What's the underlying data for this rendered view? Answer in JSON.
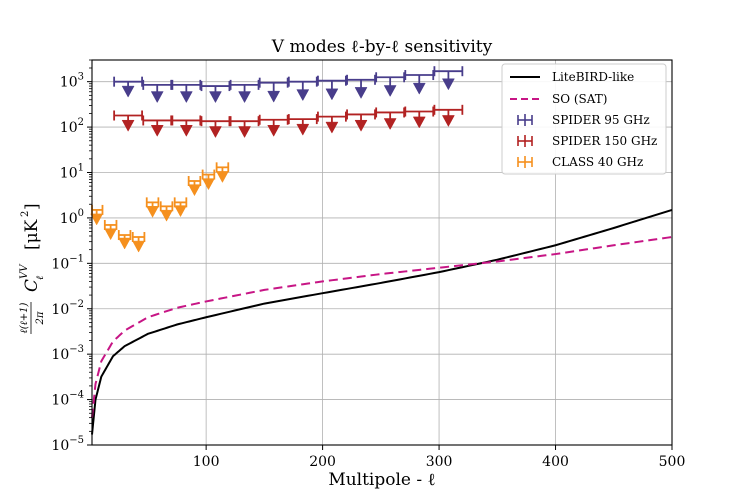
{
  "chart_data": {
    "type": "line",
    "title": "V modes ℓ-by-ℓ sensitivity",
    "xlabel": "Multipole - ℓ",
    "ylabel_parts": {
      "frac_num": "ℓ(ℓ+1)",
      "frac_den": "2π",
      "symbol": "C",
      "sup": "VV",
      "sub": "ℓ",
      "unit": "[μK",
      "unit_sup": "2",
      "unit_close": "]"
    },
    "xlim": [
      2,
      500
    ],
    "ylim": [
      1e-05,
      3000
    ],
    "yscale": "log",
    "grid": true,
    "x_ticks": [
      100,
      200,
      300,
      400,
      500
    ],
    "x_tick_labels": [
      "100",
      "200",
      "300",
      "400",
      "500"
    ],
    "y_ticks": [
      1e-05,
      0.0001,
      0.001,
      0.01,
      0.1,
      1,
      10,
      100,
      1000
    ],
    "y_tick_labels": [
      {
        "base": "10",
        "exp": "−5"
      },
      {
        "base": "10",
        "exp": "−4"
      },
      {
        "base": "10",
        "exp": "−3"
      },
      {
        "base": "10",
        "exp": "−2"
      },
      {
        "base": "10",
        "exp": "−1"
      },
      {
        "base": "10",
        "exp": "0"
      },
      {
        "base": "10",
        "exp": "1"
      },
      {
        "base": "10",
        "exp": "2"
      },
      {
        "base": "10",
        "exp": "3"
      }
    ],
    "legend_position": "top-right",
    "lines": [
      {
        "name": "LiteBIRD-like",
        "color": "#000000",
        "style": "solid",
        "x": [
          2,
          5,
          10,
          20,
          30,
          50,
          75,
          100,
          150,
          200,
          250,
          300,
          350,
          400,
          450,
          500
        ],
        "y": [
          1.7e-05,
          0.0001,
          0.00032,
          0.0009,
          0.0015,
          0.0028,
          0.0045,
          0.0065,
          0.013,
          0.022,
          0.037,
          0.064,
          0.12,
          0.25,
          0.6,
          1.5
        ]
      },
      {
        "name": "SO (SAT)",
        "color": "#c71585",
        "style": "dashed",
        "x": [
          2,
          5,
          10,
          20,
          30,
          50,
          75,
          100,
          150,
          200,
          250,
          300,
          350,
          400,
          450,
          500
        ],
        "y": [
          4e-05,
          0.00022,
          0.0007,
          0.0019,
          0.0033,
          0.0065,
          0.0105,
          0.0145,
          0.026,
          0.04,
          0.058,
          0.08,
          0.11,
          0.16,
          0.25,
          0.38
        ]
      }
    ],
    "upper_limit_series": [
      {
        "name": "SPIDER 95 GHz",
        "color": "#483d8b",
        "points": [
          {
            "x": 33,
            "xerr": 12,
            "y": 1000,
            "arrow_y": 620
          },
          {
            "x": 58,
            "xerr": 12,
            "y": 850,
            "arrow_y": 470
          },
          {
            "x": 83,
            "xerr": 12,
            "y": 850,
            "arrow_y": 470
          },
          {
            "x": 108,
            "xerr": 12,
            "y": 800,
            "arrow_y": 470
          },
          {
            "x": 133,
            "xerr": 12,
            "y": 850,
            "arrow_y": 470
          },
          {
            "x": 158,
            "xerr": 12,
            "y": 950,
            "arrow_y": 480
          },
          {
            "x": 183,
            "xerr": 12,
            "y": 1000,
            "arrow_y": 520
          },
          {
            "x": 208,
            "xerr": 12,
            "y": 1050,
            "arrow_y": 540
          },
          {
            "x": 233,
            "xerr": 12,
            "y": 1100,
            "arrow_y": 580
          },
          {
            "x": 258,
            "xerr": 12,
            "y": 1250,
            "arrow_y": 640
          },
          {
            "x": 283,
            "xerr": 12,
            "y": 1400,
            "arrow_y": 720
          },
          {
            "x": 308,
            "xerr": 12,
            "y": 1700,
            "arrow_y": 900
          }
        ]
      },
      {
        "name": "SPIDER 150 GHz",
        "color": "#b22222",
        "points": [
          {
            "x": 33,
            "xerr": 12,
            "y": 180,
            "arrow_y": 110
          },
          {
            "x": 58,
            "xerr": 12,
            "y": 140,
            "arrow_y": 85
          },
          {
            "x": 83,
            "xerr": 12,
            "y": 140,
            "arrow_y": 85
          },
          {
            "x": 108,
            "xerr": 12,
            "y": 135,
            "arrow_y": 80
          },
          {
            "x": 133,
            "xerr": 12,
            "y": 135,
            "arrow_y": 80
          },
          {
            "x": 158,
            "xerr": 12,
            "y": 145,
            "arrow_y": 85
          },
          {
            "x": 183,
            "xerr": 12,
            "y": 150,
            "arrow_y": 90
          },
          {
            "x": 208,
            "xerr": 12,
            "y": 170,
            "arrow_y": 100
          },
          {
            "x": 233,
            "xerr": 12,
            "y": 190,
            "arrow_y": 110
          },
          {
            "x": 258,
            "xerr": 12,
            "y": 210,
            "arrow_y": 120
          },
          {
            "x": 283,
            "xerr": 12,
            "y": 220,
            "arrow_y": 130
          },
          {
            "x": 308,
            "xerr": 12,
            "y": 240,
            "arrow_y": 140
          }
        ]
      },
      {
        "name": "CLASS 40 GHz",
        "color": "#f5901e",
        "points": [
          {
            "x": 6,
            "xerr": 5,
            "y": 1.5,
            "arrow_y": 0.95
          },
          {
            "x": 18,
            "xerr": 5,
            "y": 0.7,
            "arrow_y": 0.45
          },
          {
            "x": 30,
            "xerr": 5,
            "y": 0.42,
            "arrow_y": 0.28
          },
          {
            "x": 42,
            "xerr": 5,
            "y": 0.38,
            "arrow_y": 0.24
          },
          {
            "x": 54,
            "xerr": 5,
            "y": 2.2,
            "arrow_y": 1.4
          },
          {
            "x": 66,
            "xerr": 5,
            "y": 1.8,
            "arrow_y": 1.15
          },
          {
            "x": 78,
            "xerr": 5,
            "y": 2.2,
            "arrow_y": 1.45
          },
          {
            "x": 90,
            "xerr": 5,
            "y": 6.5,
            "arrow_y": 4.2
          },
          {
            "x": 102,
            "xerr": 5,
            "y": 9,
            "arrow_y": 5.7
          },
          {
            "x": 114,
            "xerr": 5,
            "y": 13,
            "arrow_y": 8.2
          }
        ]
      }
    ]
  }
}
